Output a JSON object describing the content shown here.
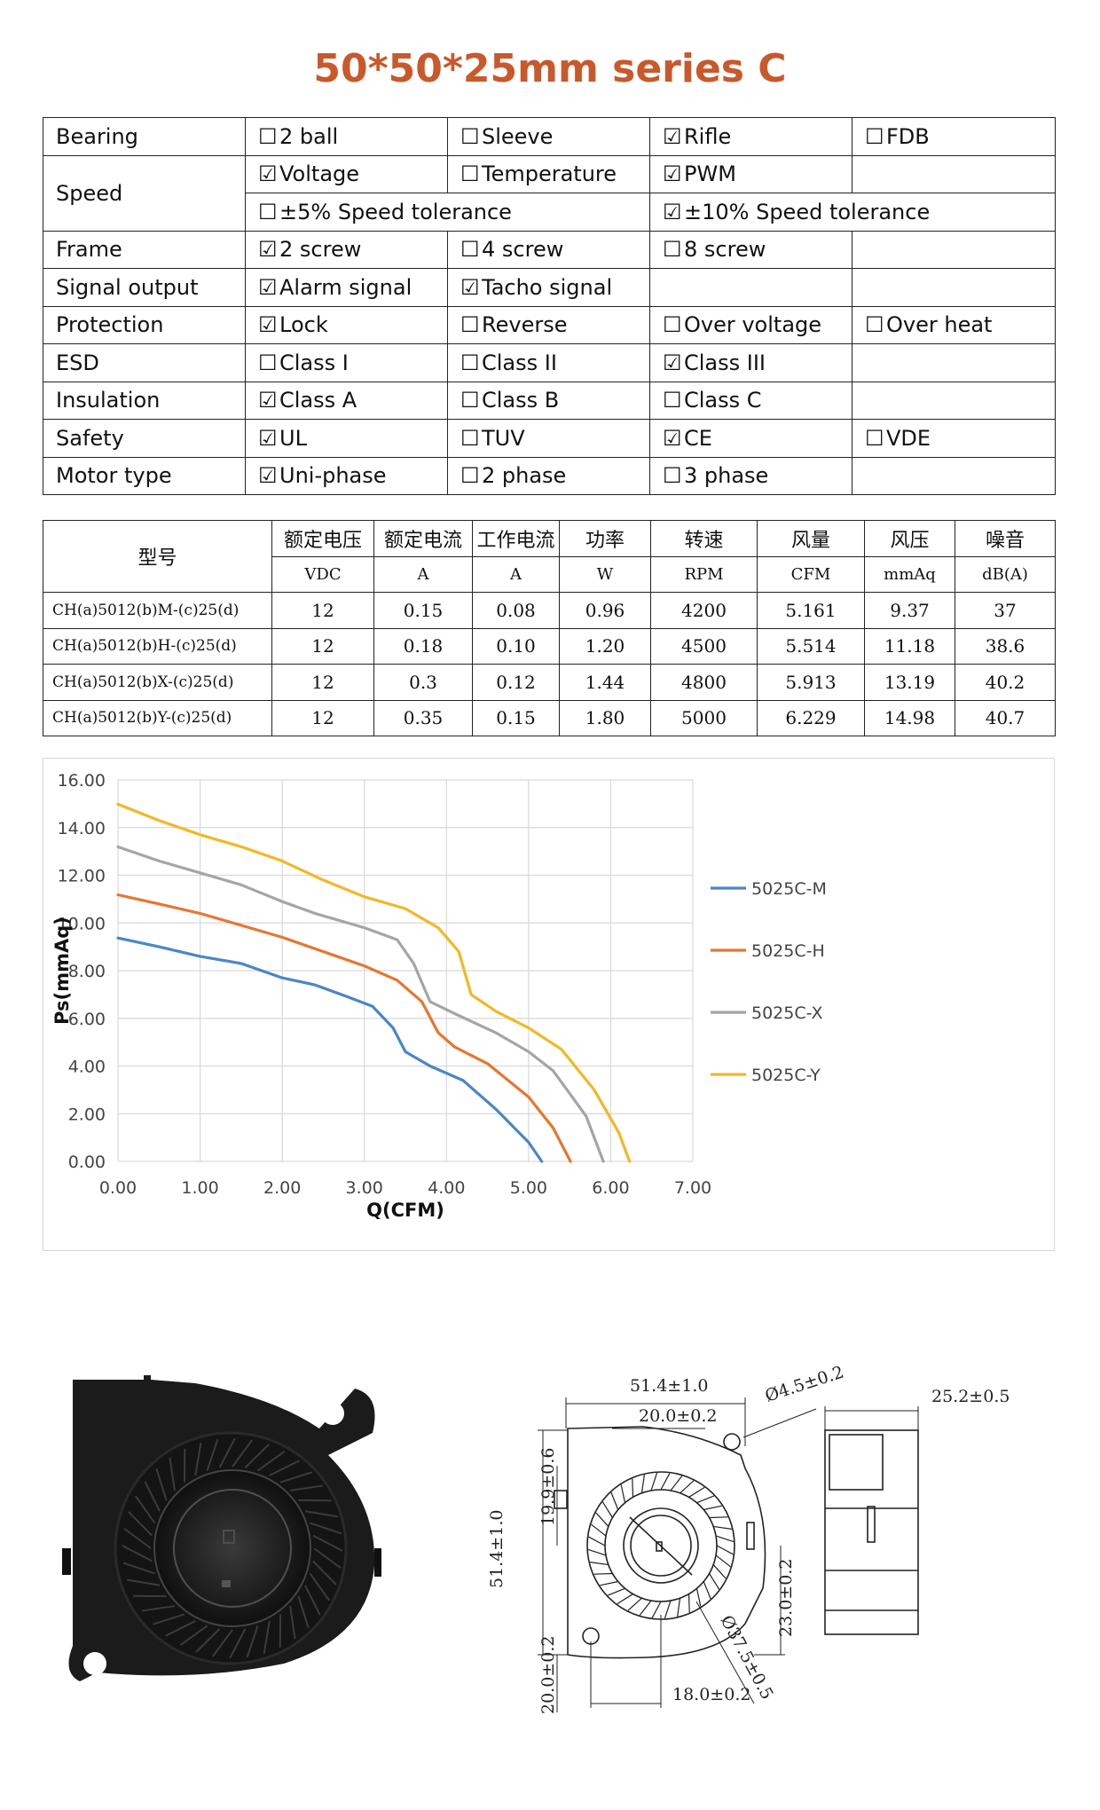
{
  "title": "50*50*25mm series C",
  "spec_rows": [
    {
      "label": "Bearing",
      "cells": [
        {
          "checked": false,
          "text": "2 ball"
        },
        {
          "checked": false,
          "text": "Sleeve"
        },
        {
          "checked": true,
          "text": "Rifle"
        },
        {
          "checked": false,
          "text": "FDB"
        }
      ]
    },
    {
      "label": "Speed",
      "cells": [
        {
          "checked": true,
          "text": "Voltage"
        },
        {
          "checked": false,
          "text": "Temperature"
        },
        {
          "checked": true,
          "text": "PWM"
        },
        null
      ]
    },
    {
      "label": "",
      "cells": [
        {
          "checked": false,
          "text": "±5% Speed tolerance"
        },
        {
          "checked": true,
          "text": "±10% Speed tolerance"
        }
      ]
    },
    {
      "label": "Frame",
      "cells": [
        {
          "checked": true,
          "text": "2 screw"
        },
        {
          "checked": false,
          "text": "4 screw"
        },
        {
          "checked": false,
          "text": "8 screw"
        },
        null
      ]
    },
    {
      "label": "Signal output",
      "cells": [
        {
          "checked": true,
          "text": "Alarm signal"
        },
        {
          "checked": true,
          "text": "Tacho signal"
        },
        null,
        null
      ]
    },
    {
      "label": "Protection",
      "cells": [
        {
          "checked": true,
          "text": "Lock"
        },
        {
          "checked": false,
          "text": "Reverse"
        },
        {
          "checked": false,
          "text": "Over voltage"
        },
        {
          "checked": false,
          "text": "Over heat"
        }
      ]
    },
    {
      "label": "ESD",
      "cells": [
        {
          "checked": false,
          "text": "Class I"
        },
        {
          "checked": false,
          "text": "Class II"
        },
        {
          "checked": true,
          "text": "Class III"
        },
        null
      ]
    },
    {
      "label": "Insulation",
      "cells": [
        {
          "checked": true,
          "text": "Class A"
        },
        {
          "checked": false,
          "text": "Class B"
        },
        {
          "checked": false,
          "text": "Class C"
        },
        null
      ]
    },
    {
      "label": "Safety",
      "cells": [
        {
          "checked": true,
          "text": "UL"
        },
        {
          "checked": false,
          "text": "TUV"
        },
        {
          "checked": true,
          "text": "CE"
        },
        {
          "checked": false,
          "text": "VDE"
        }
      ]
    },
    {
      "label": "Motor type",
      "cells": [
        {
          "checked": true,
          "text": "Uni-phase"
        },
        {
          "checked": false,
          "text": "2 phase"
        },
        {
          "checked": false,
          "text": "3 phase"
        },
        null
      ]
    }
  ],
  "checkbox_glyphs": {
    "checked": "☑",
    "unchecked": "☐"
  },
  "perf_table": {
    "model_header": "型号",
    "headers": [
      "额定电压",
      "额定电流",
      "工作电流",
      "功率",
      "转速",
      "风量",
      "风压",
      "噪音"
    ],
    "units": [
      "VDC",
      "A",
      "A",
      "W",
      "RPM",
      "CFM",
      "mmAq",
      "dB(A)"
    ],
    "rows": [
      [
        "CH(a)5012(b)M-(c)25(d)",
        "12",
        "0.15",
        "0.08",
        "0.96",
        "4200",
        "5.161",
        "9.37",
        "37"
      ],
      [
        "CH(a)5012(b)H-(c)25(d)",
        "12",
        "0.18",
        "0.10",
        "1.20",
        "4500",
        "5.514",
        "11.18",
        "38.6"
      ],
      [
        "CH(a)5012(b)X-(c)25(d)",
        "12",
        "0.3",
        "0.12",
        "1.44",
        "4800",
        "5.913",
        "13.19",
        "40.2"
      ],
      [
        "CH(a)5012(b)Y-(c)25(d)",
        "12",
        "0.35",
        "0.15",
        "1.80",
        "5000",
        "6.229",
        "14.98",
        "40.7"
      ]
    ]
  },
  "chart_data": {
    "type": "line",
    "xlabel": "Q(CFM)",
    "ylabel": "Ps(mmAq)",
    "xlim": [
      0,
      7
    ],
    "ylim": [
      0,
      16
    ],
    "xticks": [
      "0.00",
      "1.00",
      "2.00",
      "3.00",
      "4.00",
      "5.00",
      "6.00",
      "7.00"
    ],
    "yticks": [
      "0.00",
      "2.00",
      "4.00",
      "6.00",
      "8.00",
      "10.00",
      "12.00",
      "14.00",
      "16.00"
    ],
    "grid": true,
    "legend_position": "right",
    "series": [
      {
        "name": "5025C-M",
        "color": "#4a86c8",
        "points": [
          [
            0,
            9.37
          ],
          [
            0.5,
            9.0
          ],
          [
            1.0,
            8.6
          ],
          [
            1.5,
            8.3
          ],
          [
            2.0,
            7.7
          ],
          [
            2.4,
            7.4
          ],
          [
            2.8,
            6.9
          ],
          [
            3.1,
            6.5
          ],
          [
            3.35,
            5.6
          ],
          [
            3.5,
            4.6
          ],
          [
            3.8,
            4.0
          ],
          [
            4.2,
            3.4
          ],
          [
            4.6,
            2.2
          ],
          [
            5.0,
            0.8
          ],
          [
            5.16,
            0
          ]
        ]
      },
      {
        "name": "5025C-H",
        "color": "#e8752e",
        "points": [
          [
            0,
            11.18
          ],
          [
            0.5,
            10.8
          ],
          [
            1.0,
            10.4
          ],
          [
            1.5,
            9.9
          ],
          [
            2.0,
            9.4
          ],
          [
            2.5,
            8.8
          ],
          [
            3.0,
            8.2
          ],
          [
            3.4,
            7.6
          ],
          [
            3.7,
            6.7
          ],
          [
            3.9,
            5.4
          ],
          [
            4.1,
            4.8
          ],
          [
            4.5,
            4.1
          ],
          [
            5.0,
            2.7
          ],
          [
            5.3,
            1.4
          ],
          [
            5.51,
            0
          ]
        ]
      },
      {
        "name": "5025C-X",
        "color": "#a5a5a5",
        "points": [
          [
            0,
            13.19
          ],
          [
            0.5,
            12.6
          ],
          [
            1.0,
            12.1
          ],
          [
            1.5,
            11.6
          ],
          [
            2.0,
            10.9
          ],
          [
            2.4,
            10.4
          ],
          [
            3.0,
            9.8
          ],
          [
            3.4,
            9.3
          ],
          [
            3.6,
            8.3
          ],
          [
            3.8,
            6.7
          ],
          [
            4.1,
            6.2
          ],
          [
            4.6,
            5.4
          ],
          [
            5.0,
            4.6
          ],
          [
            5.3,
            3.8
          ],
          [
            5.7,
            1.9
          ],
          [
            5.91,
            0
          ]
        ]
      },
      {
        "name": "5025C-Y",
        "color": "#f2b824",
        "points": [
          [
            0,
            14.98
          ],
          [
            0.5,
            14.3
          ],
          [
            1.0,
            13.7
          ],
          [
            1.5,
            13.2
          ],
          [
            2.0,
            12.6
          ],
          [
            2.5,
            11.8
          ],
          [
            3.0,
            11.1
          ],
          [
            3.5,
            10.6
          ],
          [
            3.9,
            9.8
          ],
          [
            4.15,
            8.8
          ],
          [
            4.3,
            7.0
          ],
          [
            4.6,
            6.3
          ],
          [
            5.0,
            5.6
          ],
          [
            5.4,
            4.7
          ],
          [
            5.8,
            3.0
          ],
          [
            6.1,
            1.2
          ],
          [
            6.23,
            0
          ]
        ]
      }
    ]
  },
  "drawing_dims": [
    "51.4±1.0",
    "20.0±0.2",
    "Ø4.5±0.2",
    "25.2±0.5",
    "19.9±0.6",
    "51.4±1.0",
    "23.0±0.2",
    "Ø37.5±0.5",
    "20.0±0.2",
    "18.0±0.2"
  ]
}
